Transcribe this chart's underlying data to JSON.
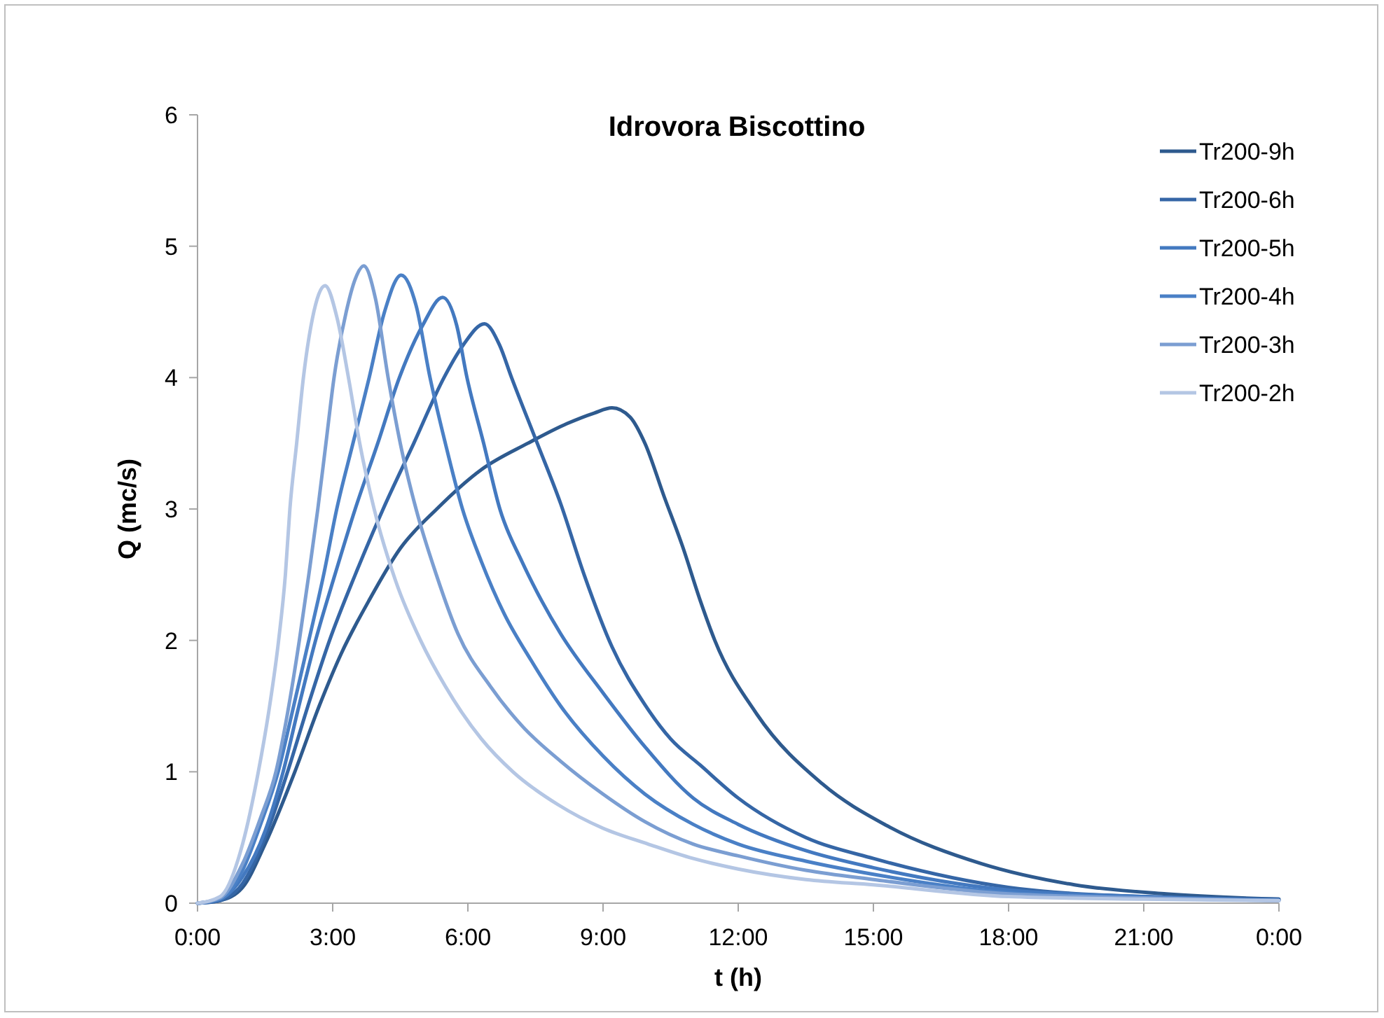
{
  "chart_data": {
    "type": "line",
    "title": "Idrovora Biscottino",
    "xlabel": "t (h)",
    "ylabel": "Q (mc/s)",
    "xlim": [
      0,
      24
    ],
    "ylim": [
      0,
      6
    ],
    "yticks": [
      0,
      1,
      2,
      3,
      4,
      5,
      6
    ],
    "xticks": [
      {
        "value": 0,
        "label": "0:00"
      },
      {
        "value": 3,
        "label": "3:00"
      },
      {
        "value": 6,
        "label": "6:00"
      },
      {
        "value": 9,
        "label": "9:00"
      },
      {
        "value": 12,
        "label": "12:00"
      },
      {
        "value": 15,
        "label": "15:00"
      },
      {
        "value": 18,
        "label": "18:00"
      },
      {
        "value": 21,
        "label": "21:00"
      },
      {
        "value": 24,
        "label": "0:00"
      }
    ],
    "grid": false,
    "legend": "top right",
    "series": [
      {
        "name": "Tr200-9h",
        "color": "#2e5a8e",
        "x": [
          0,
          0.5,
          1,
          1.5,
          2.16,
          2.7,
          3.19,
          3.8,
          4.5,
          5.31,
          6.3,
          7.33,
          8.2,
          8.8,
          9.2,
          9.6,
          9.93,
          10.35,
          10.76,
          11.16,
          11.48,
          12.41,
          13.86,
          15.3,
          17.4,
          19.46,
          21.5,
          24
        ],
        "values": [
          0,
          0.02,
          0.12,
          0.45,
          1.0,
          1.5,
          1.9,
          2.3,
          2.7,
          3.0,
          3.3,
          3.5,
          3.65,
          3.73,
          3.77,
          3.7,
          3.5,
          3.1,
          2.72,
          2.3,
          2.0,
          1.44,
          0.91,
          0.59,
          0.3,
          0.14,
          0.07,
          0.03
        ]
      },
      {
        "name": "Tr200-6h",
        "color": "#3566a6",
        "x": [
          0,
          0.5,
          1,
          1.5,
          2.0,
          2.45,
          2.93,
          3.5,
          4.12,
          4.8,
          5.47,
          5.9,
          6.37,
          6.7,
          6.97,
          7.54,
          8.06,
          8.58,
          9.2,
          9.93,
          10.5,
          11.16,
          12,
          13.5,
          15,
          18,
          21,
          24
        ],
        "values": [
          0,
          0.02,
          0.15,
          0.5,
          1.0,
          1.5,
          2.0,
          2.5,
          3.0,
          3.5,
          4.0,
          4.25,
          4.41,
          4.25,
          4.0,
          3.5,
          3.04,
          2.5,
          1.95,
          1.51,
          1.25,
          1.05,
          0.8,
          0.5,
          0.34,
          0.12,
          0.05,
          0.03
        ]
      },
      {
        "name": "Tr200-5h",
        "color": "#4379c0",
        "x": [
          0,
          0.5,
          1,
          1.5,
          1.9,
          2.25,
          2.62,
          3.05,
          3.5,
          4.0,
          4.48,
          5.0,
          5.44,
          5.75,
          5.98,
          6.35,
          6.71,
          7.2,
          7.64,
          8.06,
          9,
          9.93,
          11,
          12,
          13.5,
          15,
          18,
          21,
          24
        ],
        "values": [
          0,
          0.03,
          0.2,
          0.55,
          1.0,
          1.5,
          2.0,
          2.5,
          3.0,
          3.5,
          4.0,
          4.4,
          4.61,
          4.4,
          4.0,
          3.5,
          3.0,
          2.6,
          2.3,
          2.05,
          1.6,
          1.19,
          0.8,
          0.6,
          0.4,
          0.27,
          0.1,
          0.05,
          0.02
        ]
      },
      {
        "name": "Tr200-4h",
        "color": "#4a80c6",
        "x": [
          0,
          0.5,
          1,
          1.4,
          1.79,
          2.1,
          2.47,
          2.8,
          3.09,
          3.45,
          3.81,
          4.15,
          4.52,
          4.85,
          5.16,
          5.5,
          5.88,
          6.3,
          6.81,
          7.4,
          8.06,
          9,
          9.93,
          11,
          12,
          13.5,
          15,
          18,
          21,
          24
        ],
        "values": [
          0,
          0.03,
          0.25,
          0.6,
          1.0,
          1.45,
          2.0,
          2.5,
          3.0,
          3.5,
          4.0,
          4.5,
          4.78,
          4.55,
          4.0,
          3.5,
          3.0,
          2.6,
          2.2,
          1.85,
          1.5,
          1.12,
          0.83,
          0.6,
          0.45,
          0.32,
          0.22,
          0.08,
          0.04,
          0.02
        ]
      },
      {
        "name": "Tr200-3h",
        "color": "#7b9ed2",
        "x": [
          0,
          0.5,
          1,
          1.4,
          1.74,
          2.0,
          2.26,
          2.47,
          2.67,
          2.85,
          3.03,
          3.3,
          3.5,
          3.69,
          3.95,
          4.23,
          4.5,
          4.85,
          5.3,
          5.78,
          6.5,
          7.2,
          8.06,
          9,
          9.93,
          11,
          12,
          13.5,
          15,
          18,
          21,
          24
        ],
        "values": [
          0,
          0.04,
          0.3,
          0.65,
          1.0,
          1.45,
          2.0,
          2.5,
          3.0,
          3.5,
          4.0,
          4.5,
          4.75,
          4.85,
          4.6,
          4.0,
          3.5,
          3.0,
          2.5,
          2.05,
          1.65,
          1.35,
          1.08,
          0.83,
          0.62,
          0.45,
          0.36,
          0.25,
          0.18,
          0.07,
          0.04,
          0.02
        ]
      },
      {
        "name": "Tr200-2h",
        "color": "#b4c6e4",
        "x": [
          0,
          0.5,
          1,
          1.35,
          1.6,
          1.8,
          1.95,
          2.05,
          2.2,
          2.35,
          2.55,
          2.83,
          3.1,
          3.35,
          3.6,
          3.92,
          4.4,
          4.95,
          5.5,
          6.3,
          7,
          8,
          9,
          10,
          11,
          12,
          13.5,
          15,
          18,
          21,
          24
        ],
        "values": [
          0,
          0.05,
          0.45,
          1.0,
          1.5,
          2.0,
          2.5,
          3.0,
          3.5,
          4.0,
          4.45,
          4.7,
          4.45,
          4.0,
          3.5,
          3.0,
          2.45,
          2.0,
          1.65,
          1.25,
          1.0,
          0.75,
          0.57,
          0.45,
          0.34,
          0.26,
          0.18,
          0.14,
          0.05,
          0.03,
          0.02
        ]
      }
    ]
  }
}
